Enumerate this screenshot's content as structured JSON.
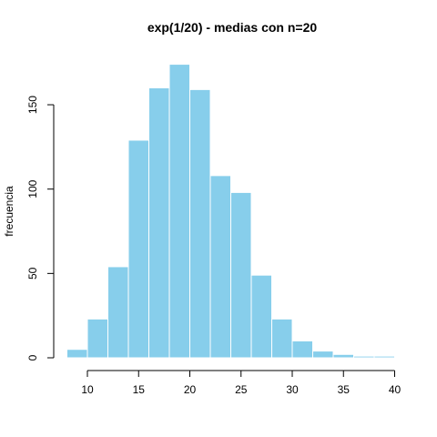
{
  "chart_data": {
    "type": "bar",
    "title": "exp(1/20) - medias con n=20",
    "xlabel": "",
    "ylabel": "frecuencia",
    "bar_color": "#87CEEB",
    "bar_border_color": "#FFFFFF",
    "grid": false,
    "bin_width": 2,
    "bins": [
      {
        "x0": 8,
        "x1": 10,
        "count": 5
      },
      {
        "x0": 10,
        "x1": 12,
        "count": 23
      },
      {
        "x0": 12,
        "x1": 14,
        "count": 54
      },
      {
        "x0": 14,
        "x1": 16,
        "count": 129
      },
      {
        "x0": 16,
        "x1": 18,
        "count": 160
      },
      {
        "x0": 18,
        "x1": 20,
        "count": 174
      },
      {
        "x0": 20,
        "x1": 22,
        "count": 159
      },
      {
        "x0": 22,
        "x1": 24,
        "count": 108
      },
      {
        "x0": 24,
        "x1": 26,
        "count": 98
      },
      {
        "x0": 26,
        "x1": 28,
        "count": 49
      },
      {
        "x0": 28,
        "x1": 30,
        "count": 23
      },
      {
        "x0": 30,
        "x1": 32,
        "count": 10
      },
      {
        "x0": 32,
        "x1": 34,
        "count": 4
      },
      {
        "x0": 34,
        "x1": 36,
        "count": 2
      },
      {
        "x0": 36,
        "x1": 38,
        "count": 1
      },
      {
        "x0": 38,
        "x1": 40,
        "count": 1
      }
    ],
    "xlim": [
      8,
      40
    ],
    "ylim": [
      0,
      174
    ],
    "x_ticks": [
      10,
      15,
      20,
      25,
      30,
      35,
      40
    ],
    "y_ticks": [
      0,
      50,
      100,
      150
    ]
  }
}
